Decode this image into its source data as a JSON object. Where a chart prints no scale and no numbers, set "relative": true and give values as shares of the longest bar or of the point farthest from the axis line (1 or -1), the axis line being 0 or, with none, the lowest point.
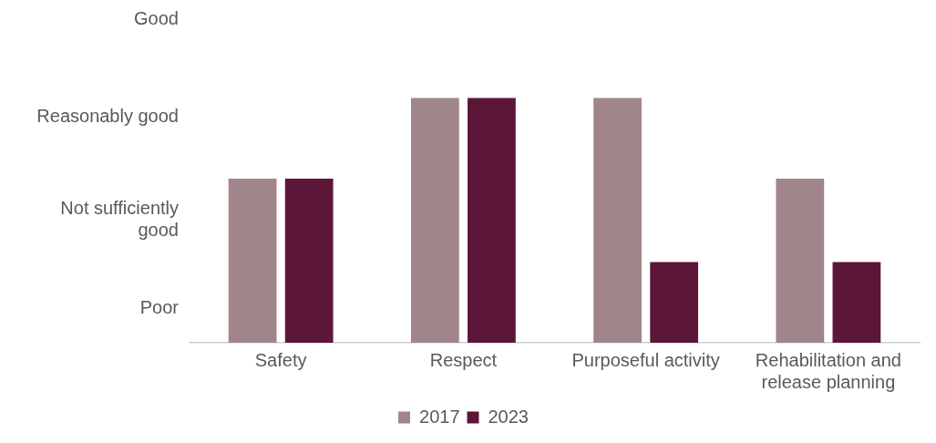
{
  "chart_data": {
    "type": "bar",
    "relative": true,
    "categories": [
      "Safety",
      "Respect",
      "Purposeful activity",
      "Rehabilitation and release planning"
    ],
    "series": [
      {
        "name": "2017",
        "color": "#a0858b",
        "values": [
          0.67,
          1,
          1,
          0.67
        ]
      },
      {
        "name": "2023",
        "color": "#5c1638",
        "values": [
          0.67,
          1,
          0.33,
          0.33
        ]
      }
    ],
    "annotations": [
      "Poor",
      "Not sufficiently good",
      "Reasonably good",
      "Good"
    ],
    "grid": false,
    "legend": "bottom"
  }
}
